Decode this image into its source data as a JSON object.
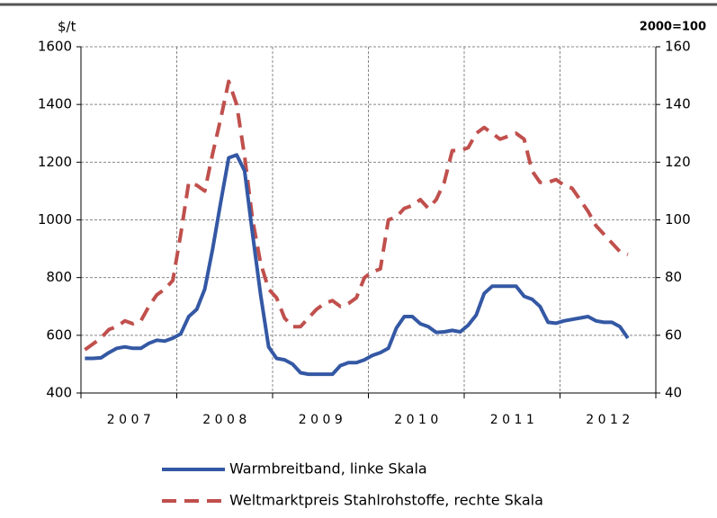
{
  "chart_data": {
    "type": "line",
    "y_label": "$/t",
    "y2_label": "2000=100",
    "categories": [
      null,
      null,
      null,
      null,
      null,
      null,
      "2 0 0 7",
      null,
      null,
      null,
      null,
      null,
      null,
      null,
      null,
      null,
      null,
      null,
      "2 0 0 8",
      null,
      null,
      null,
      null,
      null,
      null,
      null,
      null,
      null,
      null,
      null,
      "2 0 0 9",
      null,
      null,
      null,
      null,
      null,
      null,
      null,
      null,
      null,
      null,
      null,
      "2 0 1 0",
      null,
      null,
      null,
      null,
      null,
      null,
      null,
      null,
      null,
      null,
      null,
      "2 0 1 1",
      null,
      null,
      null,
      null,
      null,
      null,
      null,
      null,
      null,
      null,
      null,
      "2 0 1 2",
      null,
      null,
      null,
      null,
      null
    ],
    "series": [
      {
        "name": "Warmbreitband, linke Skala",
        "color": "#3458a4",
        "axis": "y",
        "dashed": false,
        "values": [
          520,
          520,
          522,
          540,
          555,
          560,
          555,
          555,
          572,
          583,
          580,
          590,
          605,
          665,
          690,
          760,
          900,
          1060,
          1215,
          1225,
          1170,
          950,
          740,
          560,
          520,
          515,
          500,
          470,
          465,
          465,
          465,
          465,
          495,
          505,
          505,
          515,
          530,
          540,
          555,
          625,
          665,
          665,
          640,
          630,
          610,
          612,
          617,
          612,
          635,
          670,
          745,
          770,
          770,
          770,
          770,
          735,
          725,
          700,
          645,
          642,
          650,
          655,
          660,
          665,
          650,
          645,
          645,
          630,
          590,
          null,
          null,
          null
        ]
      },
      {
        "name": "Weltmarktpreis Stahlrohstoffe, rechte Skala",
        "color": "#c0504d",
        "axis": "y2",
        "dashed": true,
        "values": [
          55,
          57,
          59,
          62,
          63,
          65,
          64,
          65,
          70,
          74,
          76,
          79,
          95,
          113,
          112,
          110,
          123,
          135,
          148,
          140,
          122,
          100,
          85,
          76,
          73,
          66,
          63,
          63,
          66,
          69,
          71,
          72,
          70,
          71,
          73,
          80,
          82,
          83,
          100,
          101,
          104,
          105,
          107,
          104,
          107,
          113,
          124,
          124,
          125,
          130,
          132,
          130,
          128,
          129,
          130,
          128,
          117,
          113,
          113,
          114,
          112,
          111,
          107,
          103,
          98,
          95,
          92,
          89,
          88,
          null,
          null,
          null
        ]
      }
    ],
    "ylim": [
      400,
      1600
    ],
    "yticks": [
      400,
      600,
      800,
      1000,
      1200,
      1400,
      1600
    ],
    "y2lim": [
      40,
      160
    ],
    "y2ticks": [
      40,
      60,
      80,
      100,
      120,
      140,
      160
    ],
    "grid": true
  }
}
